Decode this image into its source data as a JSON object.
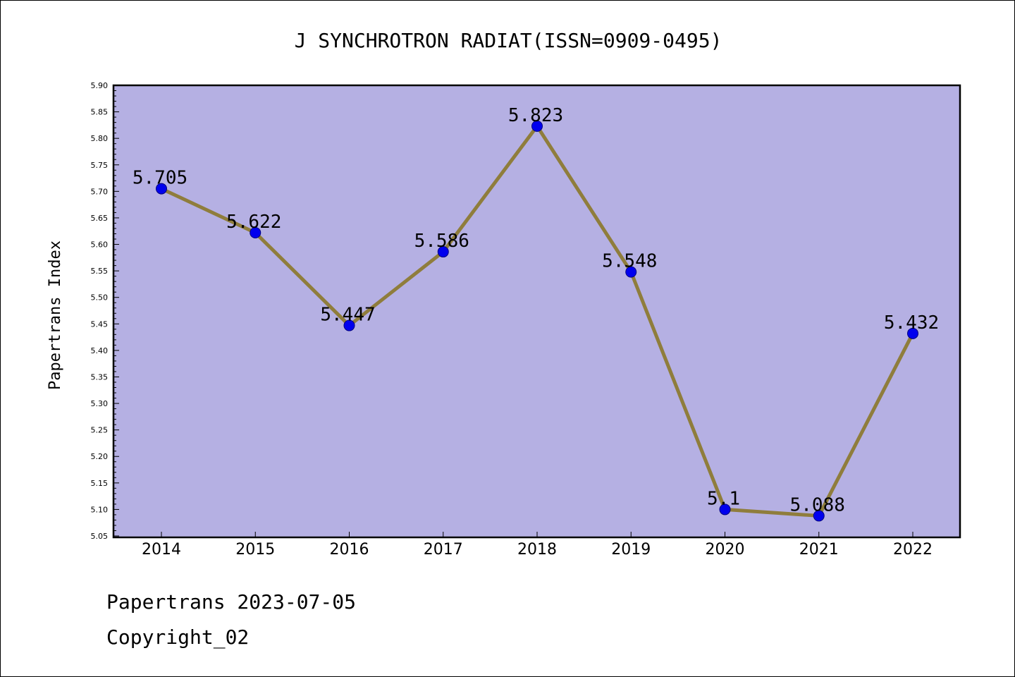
{
  "footer": {
    "line1": "Papertrans 2023-07-05",
    "line2": "Copyright_02"
  },
  "colors": {
    "plot_background": "#b5b0e3",
    "line": "#8f7d3c",
    "marker": "#0000ee",
    "marker_edge": "#000080",
    "frame": "#000000"
  },
  "chart_data": {
    "type": "line",
    "title": "J SYNCHROTRON RADIAT(ISSN=0909-0495)",
    "xlabel": "",
    "ylabel": "Papertrans Index",
    "ylim": [
      5.05,
      5.9
    ],
    "ytick_step": 0.05,
    "grid": false,
    "categories": [
      "2014",
      "2015",
      "2016",
      "2017",
      "2018",
      "2019",
      "2020",
      "2021",
      "2022"
    ],
    "values": [
      5.705,
      5.622,
      5.447,
      5.586,
      5.823,
      5.548,
      5.1,
      5.088,
      5.432
    ],
    "data_labels": [
      "5.705",
      "5.622",
      "5.447",
      "5.586",
      "5.823",
      "5.548",
      "5.1",
      "5.088",
      "5.432"
    ]
  }
}
